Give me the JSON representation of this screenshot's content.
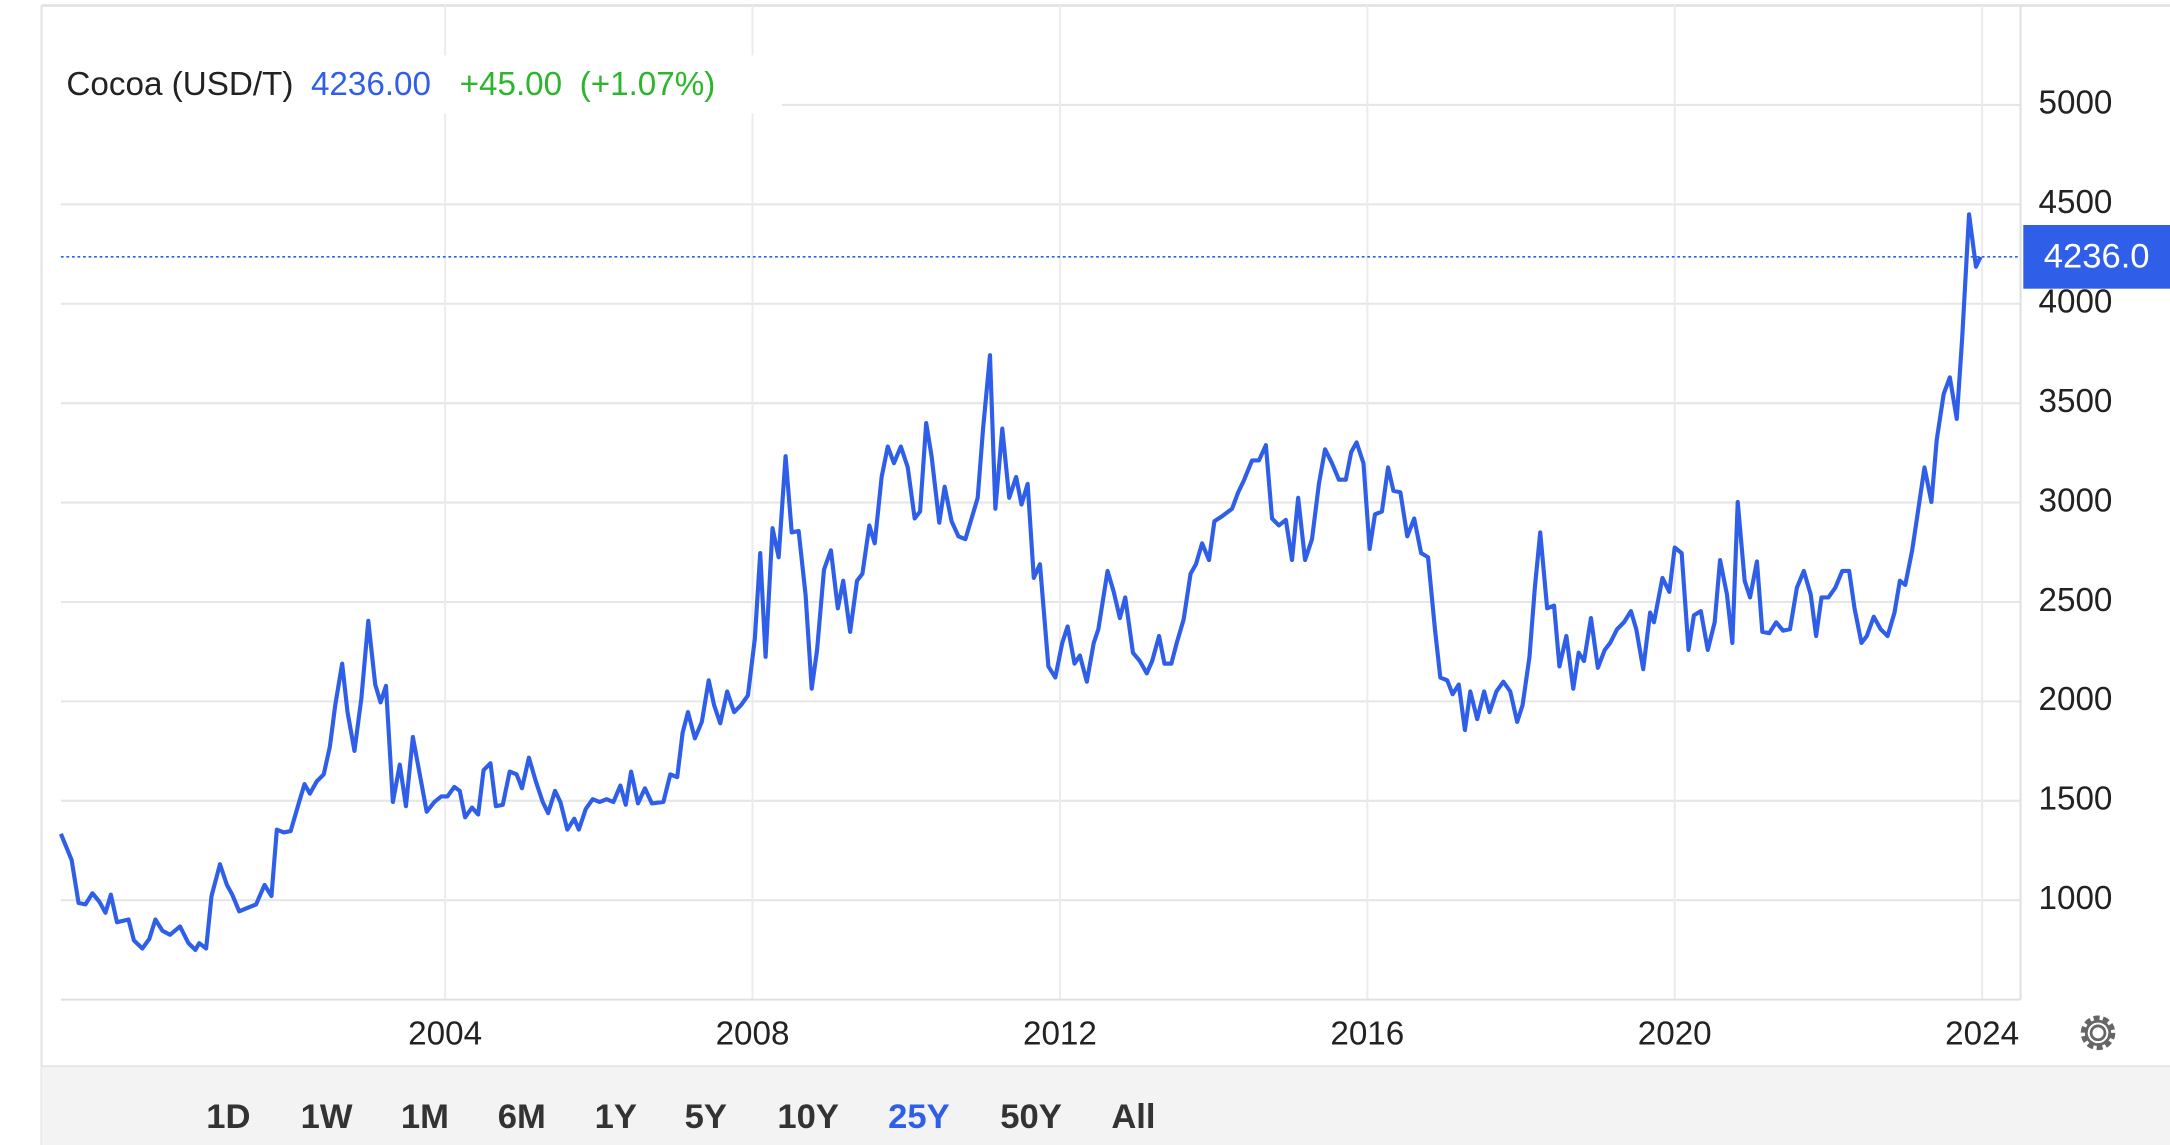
{
  "chart_data": {
    "type": "line",
    "title": "Cocoa (USD/T)",
    "last_value": "4236.00",
    "change": "+45.00",
    "change_pct": "(+1.07%)",
    "current_price": {
      "value": 4236,
      "label": "4236.0"
    },
    "ranges": [
      "1D",
      "1W",
      "1M",
      "6M",
      "1Y",
      "5Y",
      "10Y",
      "25Y",
      "50Y",
      "All"
    ],
    "selected_range": "25Y",
    "xlim": [
      1999.0,
      2024.5
    ],
    "xticks": [
      2004,
      2008,
      2012,
      2016,
      2020,
      2024
    ],
    "ylim": [
      500,
      5500
    ],
    "yticks": [
      1000,
      1500,
      2000,
      2500,
      3000,
      3500,
      4000,
      4500,
      5000
    ],
    "grid": true,
    "series": [
      {
        "name": "Cocoa",
        "color": "#2f5fe8",
        "x": [
          1999.0,
          1999.14,
          1999.23,
          1999.32,
          1999.41,
          1999.5,
          1999.58,
          1999.65,
          1999.73,
          1999.88,
          1999.95,
          2000.06,
          2000.15,
          2000.23,
          2000.32,
          2000.42,
          2000.55,
          2000.66,
          2000.75,
          2000.8,
          2000.89,
          2000.96,
          2001.07,
          2001.16,
          2001.23,
          2001.32,
          2001.45,
          2001.54,
          2001.65,
          2001.74,
          2001.81,
          2001.9,
          2001.99,
          2002.1,
          2002.17,
          2002.24,
          2002.33,
          2002.42,
          2002.5,
          2002.57,
          2002.66,
          2002.73,
          2002.82,
          2002.91,
          2003.0,
          2003.09,
          2003.16,
          2003.23,
          2003.32,
          2003.41,
          2003.49,
          2003.58,
          2003.67,
          2003.76,
          2003.86,
          2003.95,
          2004.03,
          2004.12,
          2004.19,
          2004.26,
          2004.35,
          2004.43,
          2004.5,
          2004.59,
          2004.66,
          2004.75,
          2004.84,
          2004.93,
          2005.0,
          2005.09,
          2005.18,
          2005.27,
          2005.34,
          2005.43,
          2005.5,
          2005.59,
          2005.68,
          2005.74,
          2005.83,
          2005.92,
          2006.01,
          2006.1,
          2006.19,
          2006.28,
          2006.35,
          2006.42,
          2006.51,
          2006.6,
          2006.69,
          2006.84,
          2006.93,
          2007.02,
          2007.09,
          2007.16,
          2007.25,
          2007.34,
          2007.43,
          2007.5,
          2007.58,
          2007.67,
          2007.76,
          2007.85,
          2007.94,
          2008.03,
          2008.1,
          2008.17,
          2008.26,
          2008.34,
          2008.43,
          2008.51,
          2008.6,
          2008.69,
          2008.77,
          2008.84,
          2008.93,
          2009.02,
          2009.11,
          2009.18,
          2009.27,
          2009.36,
          2009.43,
          2009.52,
          2009.59,
          2009.68,
          2009.76,
          2009.84,
          2009.93,
          2010.02,
          2010.11,
          2010.18,
          2010.26,
          2010.33,
          2010.43,
          2010.5,
          2010.59,
          2010.68,
          2010.77,
          2010.93,
          2011.0,
          2011.09,
          2011.16,
          2011.25,
          2011.34,
          2011.43,
          2011.5,
          2011.58,
          2011.66,
          2011.74,
          2011.85,
          2011.94,
          2012.03,
          2012.1,
          2012.19,
          2012.26,
          2012.35,
          2012.44,
          2012.5,
          2012.62,
          2012.7,
          2012.78,
          2012.85,
          2012.95,
          2013.04,
          2013.13,
          2013.2,
          2013.29,
          2013.36,
          2013.45,
          2013.52,
          2013.61,
          2013.7,
          2013.77,
          2013.85,
          2013.94,
          2014.01,
          2014.12,
          2014.24,
          2014.32,
          2014.39,
          2014.5,
          2014.59,
          2014.68,
          2014.76,
          2014.85,
          2014.94,
          2015.02,
          2015.1,
          2015.19,
          2015.28,
          2015.37,
          2015.45,
          2015.54,
          2015.63,
          2015.72,
          2015.79,
          2015.86,
          2015.95,
          2016.03,
          2016.1,
          2016.19,
          2016.27,
          2016.34,
          2016.43,
          2016.52,
          2016.61,
          2016.7,
          2016.79,
          2016.88,
          2016.95,
          2017.04,
          2017.11,
          2017.19,
          2017.27,
          2017.34,
          2017.43,
          2017.52,
          2017.59,
          2017.68,
          2017.77,
          2017.86,
          2017.95,
          2018.02,
          2018.11,
          2018.18,
          2018.25,
          2018.34,
          2018.43,
          2018.5,
          2018.59,
          2018.68,
          2018.75,
          2018.82,
          2018.91,
          2019.0,
          2019.09,
          2019.16,
          2019.25,
          2019.34,
          2019.43,
          2019.5,
          2019.59,
          2019.68,
          2019.73,
          2019.84,
          2019.93,
          2020.0,
          2020.09,
          2020.18,
          2020.25,
          2020.34,
          2020.43,
          2020.52,
          2020.59,
          2020.68,
          2020.75,
          2020.82,
          2020.91,
          2020.98,
          2021.07,
          2021.14,
          2021.23,
          2021.32,
          2021.41,
          2021.5,
          2021.59,
          2021.68,
          2021.77,
          2021.84,
          2021.91,
          2022.0,
          2022.09,
          2022.18,
          2022.27,
          2022.34,
          2022.43,
          2022.5,
          2022.59,
          2022.68,
          2022.77,
          2022.86,
          2022.93,
          2023.0,
          2023.09,
          2023.16,
          2023.25,
          2023.34,
          2023.41,
          2023.5,
          2023.58,
          2023.67,
          2023.74,
          2023.83,
          2023.92,
          2023.98
        ],
        "values": [
          1334,
          1202,
          986,
          979,
          1035,
          993,
          937,
          1028,
          889,
          903,
          798,
          757,
          805,
          903,
          847,
          826,
          868,
          784,
          750,
          784,
          757,
          1021,
          1181,
          1077,
          1028,
          944,
          965,
          979,
          1077,
          1021,
          1355,
          1341,
          1348,
          1494,
          1584,
          1536,
          1598,
          1633,
          1772,
          1981,
          2190,
          1946,
          1751,
          2016,
          2405,
          2085,
          1995,
          2078,
          1494,
          1682,
          1473,
          1821,
          1633,
          1445,
          1494,
          1522,
          1522,
          1570,
          1550,
          1417,
          1466,
          1431,
          1654,
          1689,
          1473,
          1480,
          1647,
          1633,
          1563,
          1717,
          1598,
          1494,
          1438,
          1550,
          1494,
          1355,
          1410,
          1355,
          1459,
          1508,
          1494,
          1508,
          1494,
          1577,
          1480,
          1647,
          1487,
          1563,
          1487,
          1494,
          1633,
          1619,
          1842,
          1946,
          1814,
          1897,
          2106,
          1981,
          1890,
          2050,
          1946,
          1981,
          2030,
          2315,
          2746,
          2224,
          2871,
          2725,
          3233,
          2850,
          2857,
          2537,
          2064,
          2259,
          2663,
          2760,
          2468,
          2607,
          2350,
          2607,
          2642,
          2885,
          2795,
          3129,
          3282,
          3198,
          3282,
          3177,
          2920,
          2955,
          3400,
          3233,
          2899,
          3080,
          2906,
          2830,
          2816,
          3024,
          3372,
          3741,
          2969,
          3372,
          3024,
          3129,
          2990,
          3094,
          2621,
          2690,
          2176,
          2120,
          2294,
          2377,
          2190,
          2231,
          2099,
          2294,
          2363,
          2656,
          2551,
          2419,
          2523,
          2245,
          2203,
          2141,
          2203,
          2329,
          2190,
          2190,
          2294,
          2412,
          2642,
          2690,
          2795,
          2711,
          2906,
          2934,
          2969,
          3052,
          3108,
          3212,
          3212,
          3289,
          2920,
          2885,
          2913,
          2711,
          3024,
          2711,
          2816,
          3094,
          3268,
          3198,
          3115,
          3115,
          3254,
          3303,
          3198,
          2767,
          2941,
          2955,
          3177,
          3059,
          3052,
          2830,
          2920,
          2746,
          2725,
          2363,
          2120,
          2106,
          2036,
          2085,
          1856,
          2050,
          1911,
          2050,
          1946,
          2050,
          2099,
          2050,
          1897,
          1981,
          2224,
          2572,
          2850,
          2468,
          2482,
          2176,
          2329,
          2064,
          2245,
          2203,
          2419,
          2169,
          2259,
          2294,
          2363,
          2398,
          2454,
          2363,
          2162,
          2447,
          2398,
          2621,
          2551,
          2774,
          2746,
          2259,
          2433,
          2454,
          2259,
          2398,
          2711,
          2537,
          2294,
          3003,
          2607,
          2523,
          2704,
          2350,
          2343,
          2398,
          2356,
          2363,
          2572,
          2656,
          2537,
          2329,
          2523,
          2523,
          2572,
          2656,
          2656,
          2468,
          2294,
          2329,
          2426,
          2363,
          2329,
          2447,
          2607,
          2586,
          2760,
          2941,
          3177,
          3003,
          3317,
          3546,
          3630,
          3421,
          3824,
          4450,
          4186,
          4236
        ]
      }
    ]
  }
}
